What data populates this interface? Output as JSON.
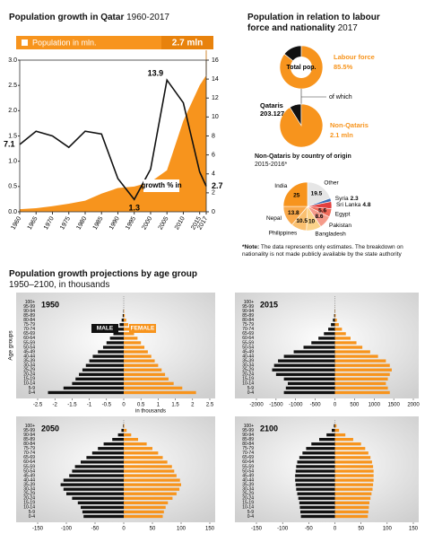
{
  "chart_data": [
    {
      "type": "combo",
      "title": "Population growth in Qatar",
      "subtitle": "1960-2017",
      "x": [
        1960,
        1965,
        1970,
        1975,
        1980,
        1985,
        1990,
        1995,
        2000,
        2005,
        2010,
        2015,
        2017
      ],
      "xlim": [
        1960,
        2017
      ],
      "xticks": [
        1960,
        1965,
        1970,
        1975,
        1980,
        1985,
        1990,
        1995,
        2000,
        2005,
        2010,
        2015,
        2017
      ],
      "ylim": [
        0,
        3
      ],
      "yticks": [
        {
          "value": 0,
          "label": "0.0"
        },
        0.5,
        {
          "value": 1,
          "label": "1.0"
        },
        1.5,
        {
          "value": 2,
          "label": "2.0"
        },
        2.5,
        {
          "value": 3,
          "label": "3.0"
        }
      ],
      "y2lim": [
        0,
        16
      ],
      "y2ticks": [
        0,
        2,
        4,
        6,
        8,
        10,
        12,
        14,
        16
      ],
      "series": [
        {
          "name": "Population in mln.",
          "type": "area",
          "color": "#f7941d",
          "values": [
            0.05,
            0.07,
            0.11,
            0.16,
            0.22,
            0.36,
            0.47,
            0.5,
            0.59,
            0.82,
            1.8,
            2.5,
            2.7
          ],
          "value_labels": [
            null,
            null,
            null,
            null,
            null,
            null,
            null,
            null,
            null,
            null,
            null,
            null,
            "2.7 mln"
          ]
        },
        {
          "name": "growth % in",
          "type": "line",
          "axis": "y2",
          "color": "#111111",
          "values": [
            7.1,
            8.5,
            8,
            6.8,
            8.5,
            8.2,
            3.5,
            1.3,
            4.5,
            13.9,
            11.5,
            4.2,
            2.7
          ]
        }
      ]
    },
    {
      "type": "pie",
      "title": "Population in relation to labour force  and nationality",
      "subtitle": "2017",
      "center_label": "Total pop.",
      "categories": [
        null,
        "Labour force"
      ],
      "values": [
        14.5,
        85.5
      ],
      "value_labels": [
        null,
        "85.5%"
      ],
      "colors": [
        "#111111",
        "#f7941d"
      ],
      "annotation": "of which"
    },
    {
      "type": "pie",
      "categories": [
        "Qataris",
        "Non-Qataris"
      ],
      "values": [
        203.127,
        2100
      ],
      "value_labels": [
        "203.127",
        "2.1 mln"
      ],
      "colors": [
        "#111111",
        "#f7941d"
      ]
    },
    {
      "type": "pie",
      "title": "Non-Qataris by country of origin",
      "subtitle": "2015-2016*",
      "categories": [
        "Other",
        "Syria",
        "Sri Lanka",
        "Egypt",
        "Pakistan",
        "Bangladesh",
        "Philippines",
        "Nepal",
        "India"
      ],
      "values": [
        19.5,
        2.3,
        4.8,
        5.6,
        8.6,
        10,
        10.5,
        13.8,
        25
      ],
      "colors": [
        "#e6e6e6",
        "#3b6fb6",
        "#e23f3f",
        "#f06a5a",
        "#f59b8a",
        "#fbd38a",
        "#fac070",
        "#f9a94b",
        "#f7941d"
      ]
    },
    {
      "type": "pyramid",
      "title": "1950",
      "ylabel": "Age groups",
      "xlabel": "in thousands",
      "categories": [
        "0-4",
        "5-9",
        "10-14",
        "15-19",
        "20-24",
        "25-29",
        "30-34",
        "35-39",
        "40-44",
        "45-49",
        "50-54",
        "55-59",
        "60-64",
        "65-69",
        "70-74",
        "75-79",
        "80-84",
        "85-89",
        "90-94",
        "95-99",
        "100+"
      ],
      "xlim": [
        -2.5,
        2.5
      ],
      "xticks": [
        -2.5,
        -2,
        -1.5,
        -1,
        -0.5,
        0,
        0.5,
        1,
        1.5,
        2,
        2.5
      ],
      "series": [
        {
          "name": "MALE",
          "color": "#111111",
          "values": [
            -2.2,
            -1.75,
            -1.5,
            -1.4,
            -1.3,
            -1.2,
            -1.1,
            -1,
            -0.9,
            -0.75,
            -0.6,
            -0.5,
            -0.4,
            -0.3,
            -0.2,
            -0.12,
            -0.06,
            -0.03,
            -0.01,
            0,
            0
          ]
        },
        {
          "name": "FEMALE",
          "color": "#f7941d",
          "values": [
            2.1,
            1.7,
            1.45,
            1.3,
            1.2,
            1.1,
            1,
            0.9,
            0.8,
            0.7,
            0.6,
            0.5,
            0.4,
            0.3,
            0.2,
            0.13,
            0.07,
            0.03,
            0.01,
            0,
            0
          ]
        }
      ]
    },
    {
      "type": "pyramid",
      "title": "2015",
      "categories": [
        "0-4",
        "5-9",
        "10-14",
        "15-19",
        "20-24",
        "25-29",
        "30-34",
        "35-39",
        "40-44",
        "45-49",
        "50-54",
        "55-59",
        "60-64",
        "65-69",
        "70-74",
        "75-79",
        "80-84",
        "85-89",
        "90-94",
        "95-99",
        "100+"
      ],
      "xlim": [
        -2000,
        2000
      ],
      "xticks": [
        -2000,
        -1500,
        -1000,
        -500,
        0,
        500,
        1000,
        1500,
        2000
      ],
      "series": [
        {
          "color": "#111111",
          "values": [
            -1300,
            -1250,
            -1200,
            -1300,
            -1500,
            -1600,
            -1550,
            -1450,
            -1300,
            -1050,
            -800,
            -600,
            -420,
            -280,
            -170,
            -100,
            -50,
            -20,
            -6,
            -1,
            0
          ]
        },
        {
          "color": "#f7941d",
          "values": [
            1400,
            1350,
            1300,
            1350,
            1400,
            1450,
            1400,
            1300,
            1100,
            900,
            700,
            550,
            400,
            280,
            180,
            100,
            50,
            20,
            6,
            1,
            0
          ]
        }
      ]
    },
    {
      "type": "pyramid",
      "title": "2050",
      "categories": [
        "0-4",
        "5-9",
        "10-14",
        "15-19",
        "20-24",
        "25-29",
        "30-34",
        "35-39",
        "40-44",
        "45-49",
        "50-54",
        "55-59",
        "60-64",
        "65-69",
        "70-74",
        "75-79",
        "80-84",
        "85-89",
        "90-94",
        "95-99",
        "100+"
      ],
      "xlim": [
        -150,
        150
      ],
      "xticks": [
        -150,
        -100,
        -50,
        0,
        50,
        100,
        150
      ],
      "series": [
        {
          "color": "#111111",
          "values": [
            -70,
            -72,
            -75,
            -80,
            -90,
            -100,
            -105,
            -110,
            -105,
            -95,
            -90,
            -85,
            -75,
            -65,
            -55,
            -45,
            -35,
            -20,
            -10,
            -4,
            -1
          ]
        },
        {
          "color": "#f7941d",
          "values": [
            68,
            70,
            73,
            77,
            85,
            92,
            97,
            100,
            98,
            92,
            88,
            84,
            76,
            68,
            60,
            50,
            40,
            25,
            13,
            5,
            1
          ]
        }
      ]
    },
    {
      "type": "pyramid",
      "title": "2100",
      "categories": [
        "0-4",
        "5-9",
        "10-14",
        "15-19",
        "20-24",
        "25-29",
        "30-34",
        "35-39",
        "40-44",
        "45-49",
        "50-54",
        "55-59",
        "60-64",
        "65-69",
        "70-74",
        "75-79",
        "80-84",
        "85-89",
        "90-94",
        "95-99",
        "100+"
      ],
      "xlim": [
        -150,
        150
      ],
      "xticks": [
        -150,
        -100,
        -50,
        0,
        50,
        100,
        150
      ],
      "series": [
        {
          "color": "#111111",
          "values": [
            -65,
            -66,
            -67,
            -68,
            -70,
            -72,
            -74,
            -75,
            -76,
            -76,
            -75,
            -74,
            -72,
            -68,
            -62,
            -55,
            -45,
            -30,
            -16,
            -6,
            -2
          ]
        },
        {
          "color": "#f7941d",
          "values": [
            63,
            64,
            65,
            66,
            68,
            70,
            72,
            73,
            74,
            74,
            74,
            73,
            71,
            68,
            64,
            58,
            50,
            35,
            20,
            8,
            3
          ]
        }
      ]
    }
  ],
  "projections": {
    "title": "Population growth projections by age group",
    "subtitle": "1950–2100, in thousands"
  },
  "note": {
    "label": "*Note:",
    "text": "The data represents only estimates. The breakdown on nationality is not made publicly available by the state authority"
  }
}
